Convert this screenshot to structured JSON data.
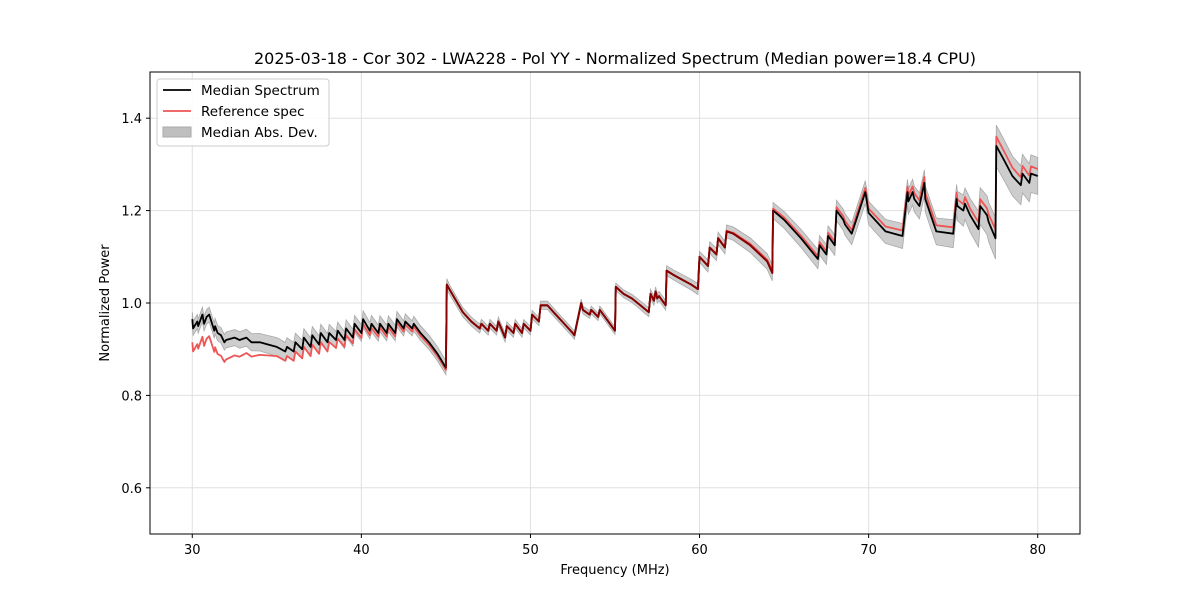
{
  "chart_data": {
    "type": "line",
    "title": "2025-03-18 - Cor 302 - LWA228 - Pol YY - Normalized Spectrum (Median power=18.4 CPU)",
    "xlabel": "Frequency (MHz)",
    "ylabel": "Normalized Power",
    "xlim": [
      27.5,
      82.5
    ],
    "ylim": [
      0.5,
      1.5
    ],
    "xticks": [
      30,
      40,
      50,
      60,
      70,
      80
    ],
    "xtick_labels": [
      "30",
      "40",
      "50",
      "60",
      "70",
      "80"
    ],
    "yticks": [
      0.6,
      0.8,
      1.0,
      1.2,
      1.4
    ],
    "ytick_labels": [
      "0.6",
      "0.8",
      "1.0",
      "1.2",
      "1.4"
    ],
    "grid": true,
    "legend_position": "top-left",
    "legend": [
      {
        "label": "Median Spectrum",
        "type": "line",
        "color": "#000000"
      },
      {
        "label": "Reference spec",
        "type": "line",
        "color": "#ee5555"
      },
      {
        "label": "Median Abs. Dev.",
        "type": "band",
        "color": "#bfbfbf"
      }
    ],
    "series": [
      {
        "name": "Median Spectrum",
        "color": "#000000",
        "x": [
          30.0,
          30.05,
          30.3,
          30.35,
          30.6,
          30.7,
          30.85,
          31.0,
          31.3,
          31.35,
          31.5,
          31.7,
          31.9,
          32.0,
          32.5,
          32.8,
          33.2,
          33.5,
          34.0,
          34.5,
          35.0,
          35.5,
          35.6,
          36.0,
          36.1,
          36.5,
          36.6,
          37.0,
          37.1,
          37.5,
          37.6,
          38.0,
          38.1,
          38.5,
          38.6,
          39.0,
          39.1,
          39.5,
          39.6,
          40.0,
          40.1,
          40.5,
          40.6,
          41.0,
          41.1,
          41.5,
          41.6,
          42.0,
          42.1,
          42.5,
          42.6,
          43.0,
          43.1,
          43.5,
          44.0,
          44.5,
          45.0,
          45.05,
          45.2,
          46.0,
          46.5,
          47.0,
          47.1,
          47.5,
          47.6,
          48.0,
          48.1,
          48.5,
          48.6,
          49.0,
          49.1,
          49.5,
          49.6,
          50.0,
          50.1,
          50.5,
          50.6,
          51.0,
          51.5,
          52.0,
          52.5,
          52.6,
          53.0,
          53.1,
          53.5,
          53.6,
          54.0,
          54.1,
          55.0,
          55.05,
          55.5,
          56.0,
          56.5,
          57.0,
          57.1,
          57.3,
          57.4,
          57.5,
          57.6,
          58.0,
          58.05,
          58.5,
          59.0,
          59.5,
          59.9,
          60.0,
          60.5,
          60.6,
          61.0,
          61.1,
          61.5,
          61.6,
          62.0,
          63.0,
          64.0,
          64.3,
          64.35,
          65.0,
          66.0,
          67.0,
          67.1,
          67.5,
          67.6,
          68.0,
          68.1,
          68.5,
          68.6,
          69.0,
          69.8,
          69.85,
          70.0,
          71.0,
          72.0,
          72.3,
          72.35,
          72.6,
          72.7,
          73.0,
          73.3,
          73.35,
          74.0,
          75.0,
          75.2,
          75.25,
          75.6,
          75.7,
          76.0,
          76.5,
          76.6,
          77.0,
          77.1,
          77.5,
          77.55,
          78.0,
          78.5,
          79.0,
          79.1,
          79.5,
          79.6,
          80.0
        ],
        "y": [
          0.965,
          0.945,
          0.96,
          0.95,
          0.975,
          0.955,
          0.97,
          0.975,
          0.94,
          0.95,
          0.935,
          0.93,
          0.915,
          0.92,
          0.925,
          0.92,
          0.925,
          0.915,
          0.915,
          0.91,
          0.905,
          0.895,
          0.905,
          0.895,
          0.915,
          0.9,
          0.925,
          0.905,
          0.93,
          0.91,
          0.935,
          0.915,
          0.935,
          0.92,
          0.94,
          0.92,
          0.945,
          0.925,
          0.955,
          0.935,
          0.965,
          0.94,
          0.955,
          0.935,
          0.955,
          0.935,
          0.955,
          0.935,
          0.965,
          0.945,
          0.96,
          0.945,
          0.955,
          0.935,
          0.915,
          0.89,
          0.86,
          1.04,
          1.03,
          0.98,
          0.96,
          0.945,
          0.955,
          0.94,
          0.955,
          0.94,
          0.96,
          0.925,
          0.95,
          0.935,
          0.955,
          0.935,
          0.955,
          0.94,
          0.975,
          0.96,
          0.995,
          0.995,
          0.975,
          0.955,
          0.935,
          0.93,
          1.0,
          0.985,
          0.975,
          0.985,
          0.97,
          0.985,
          0.94,
          1.035,
          1.02,
          1.01,
          0.995,
          0.98,
          1.02,
          1.005,
          1.025,
          1.01,
          1.015,
          0.995,
          1.07,
          1.06,
          1.05,
          1.04,
          1.03,
          1.1,
          1.08,
          1.12,
          1.105,
          1.14,
          1.12,
          1.155,
          1.15,
          1.125,
          1.09,
          1.065,
          1.2,
          1.18,
          1.14,
          1.095,
          1.125,
          1.105,
          1.145,
          1.125,
          1.2,
          1.18,
          1.17,
          1.15,
          1.24,
          1.23,
          1.195,
          1.155,
          1.145,
          1.24,
          1.22,
          1.24,
          1.225,
          1.21,
          1.26,
          1.225,
          1.155,
          1.15,
          1.225,
          1.21,
          1.2,
          1.215,
          1.19,
          1.16,
          1.21,
          1.19,
          1.175,
          1.14,
          1.34,
          1.31,
          1.275,
          1.255,
          1.28,
          1.26,
          1.28,
          1.275
        ]
      },
      {
        "name": "Reference spec",
        "color": "#ee5555",
        "offset_from_median": {
          "x": [
            30.0,
            31.6,
            35.0,
            38.0,
            39.6,
            41.0,
            45.0,
            45.1,
            60.0,
            65.0,
            69.0,
            72.0,
            77.0,
            77.5,
            80.0
          ],
          "dy": [
            -0.05,
            -0.045,
            -0.02,
            -0.02,
            -0.012,
            -0.008,
            -0.005,
            0.0,
            0.0,
            0.005,
            0.008,
            0.012,
            0.015,
            0.02,
            0.015
          ]
        }
      },
      {
        "name": "Median Abs. Dev.",
        "color": "#bfbfbf",
        "half_width": {
          "x": [
            30.0,
            35.0,
            40.0,
            45.0,
            45.1,
            55.0,
            60.0,
            65.0,
            70.0,
            75.0,
            77.5,
            80.0
          ],
          "dy": [
            0.015,
            0.02,
            0.018,
            0.015,
            0.01,
            0.008,
            0.012,
            0.018,
            0.025,
            0.03,
            0.045,
            0.04
          ]
        }
      }
    ]
  }
}
